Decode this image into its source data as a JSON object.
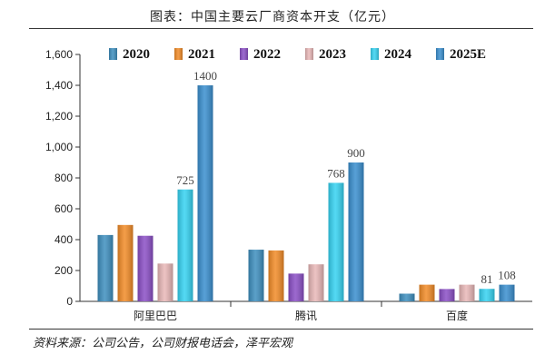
{
  "title": "图表：中国主要云厂商资本开支（亿元）",
  "source": "资料来源：公司公告，公司财报电话会，泽平宏观",
  "chart_data": {
    "type": "bar",
    "categories": [
      "阿里巴巴",
      "腾讯",
      "百度"
    ],
    "series": [
      {
        "name": "2020",
        "values": [
          430,
          335,
          50
        ],
        "color": "#3e8fbf"
      },
      {
        "name": "2021",
        "values": [
          495,
          330,
          108
        ],
        "color": "#f28c28"
      },
      {
        "name": "2022",
        "values": [
          425,
          180,
          80
        ],
        "color": "#8b4fc6"
      },
      {
        "name": "2023",
        "values": [
          245,
          240,
          108
        ],
        "color": "#e9b8b8"
      },
      {
        "name": "2024",
        "values": [
          725,
          768,
          81
        ],
        "color": "#36d3f2"
      },
      {
        "name": "2025E",
        "values": [
          1400,
          900,
          108
        ],
        "color": "#3a8fcf"
      }
    ],
    "data_labels": [
      {
        "category": 0,
        "series": 4,
        "text": "725"
      },
      {
        "category": 0,
        "series": 5,
        "text": "1400"
      },
      {
        "category": 1,
        "series": 4,
        "text": "768"
      },
      {
        "category": 1,
        "series": 5,
        "text": "900"
      },
      {
        "category": 2,
        "series": 4,
        "text": "81"
      },
      {
        "category": 2,
        "series": 5,
        "text": "108"
      }
    ],
    "y_ticks": [
      "0",
      "200",
      "400",
      "600",
      "800",
      "1,000",
      "1,200",
      "1,400",
      "1,600"
    ],
    "ylim": [
      0,
      1600
    ],
    "legend_position": "top",
    "grid": false
  }
}
